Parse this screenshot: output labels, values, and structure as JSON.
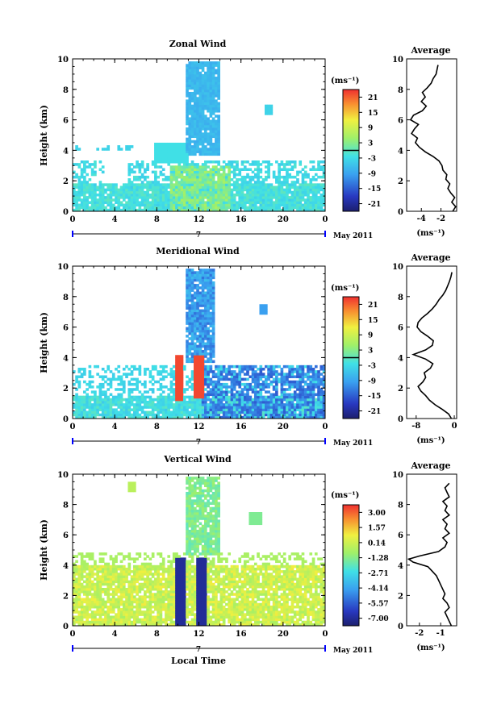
{
  "chart_data": [
    {
      "type": "heatmap",
      "title": "Zonal Wind",
      "ylabel": "Height (km)",
      "xlim": [
        0,
        24
      ],
      "ylim": [
        0,
        10
      ],
      "x_ticks": [
        "0",
        "4",
        "8",
        "12",
        "16",
        "20",
        "0"
      ],
      "y_ticks": [
        "0",
        "2",
        "4",
        "6",
        "8",
        "10"
      ],
      "date_marker": "7",
      "date_label": "May 2011",
      "colorbar": {
        "unit_label": "(ms⁻¹)",
        "ticks": [
          "21",
          "15",
          "9",
          "3",
          "-3",
          "-9",
          "-15",
          "-21"
        ],
        "range": [
          -24,
          24
        ],
        "zero_line": 0
      },
      "average": {
        "title": "Average",
        "xlabel": "(ms⁻¹)",
        "x_ticks": [
          "-4",
          "-2"
        ],
        "xlim": [
          -5.5,
          -0.4
        ],
        "profile": [
          [
            0,
            -0.8
          ],
          [
            0.3,
            -0.5
          ],
          [
            0.6,
            -0.9
          ],
          [
            0.9,
            -0.6
          ],
          [
            1.2,
            -1.0
          ],
          [
            1.5,
            -1.3
          ],
          [
            1.8,
            -1.1
          ],
          [
            2.1,
            -1.5
          ],
          [
            2.4,
            -1.4
          ],
          [
            2.7,
            -1.8
          ],
          [
            3.0,
            -1.9
          ],
          [
            3.3,
            -2.2
          ],
          [
            3.6,
            -2.8
          ],
          [
            3.9,
            -3.6
          ],
          [
            4.2,
            -4.2
          ],
          [
            4.5,
            -4.6
          ],
          [
            4.8,
            -4.4
          ],
          [
            5.1,
            -5.0
          ],
          [
            5.4,
            -4.7
          ],
          [
            5.7,
            -4.3
          ],
          [
            6.0,
            -5.1
          ],
          [
            6.3,
            -4.8
          ],
          [
            6.6,
            -3.9
          ],
          [
            6.9,
            -3.5
          ],
          [
            7.2,
            -4.0
          ],
          [
            7.5,
            -3.6
          ],
          [
            7.8,
            -3.9
          ],
          [
            8.1,
            -3.4
          ],
          [
            8.4,
            -3.0
          ],
          [
            8.7,
            -2.8
          ],
          [
            9.0,
            -2.5
          ],
          [
            9.3,
            -2.4
          ],
          [
            9.6,
            -2.3
          ]
        ]
      }
    },
    {
      "type": "heatmap",
      "title": "Meridional Wind",
      "ylabel": "Height (km)",
      "xlim": [
        0,
        24
      ],
      "ylim": [
        0,
        10
      ],
      "x_ticks": [
        "0",
        "4",
        "8",
        "12",
        "16",
        "20",
        "0"
      ],
      "y_ticks": [
        "0",
        "2",
        "4",
        "6",
        "8",
        "10"
      ],
      "date_marker": "7",
      "date_label": "May 2011",
      "colorbar": {
        "unit_label": "(ms⁻¹)",
        "ticks": [
          "21",
          "15",
          "9",
          "3",
          "-3",
          "-9",
          "-15",
          "-21"
        ],
        "range": [
          -24,
          24
        ],
        "zero_line": 0
      },
      "average": {
        "title": "Average",
        "xlabel": "(ms⁻¹)",
        "x_ticks": [
          "-8",
          "0"
        ],
        "xlim": [
          -10,
          0.5
        ],
        "profile": [
          [
            0,
            -0.6
          ],
          [
            0.3,
            -1.2
          ],
          [
            0.6,
            -2.5
          ],
          [
            0.9,
            -4.0
          ],
          [
            1.2,
            -5.2
          ],
          [
            1.5,
            -6.0
          ],
          [
            1.8,
            -7.0
          ],
          [
            2.1,
            -7.6
          ],
          [
            2.4,
            -6.6
          ],
          [
            2.7,
            -6.0
          ],
          [
            3.0,
            -6.3
          ],
          [
            3.3,
            -5.0
          ],
          [
            3.6,
            -4.5
          ],
          [
            3.9,
            -6.0
          ],
          [
            4.2,
            -8.6
          ],
          [
            4.5,
            -6.0
          ],
          [
            4.8,
            -4.6
          ],
          [
            5.1,
            -4.4
          ],
          [
            5.4,
            -5.6
          ],
          [
            5.7,
            -7.0
          ],
          [
            6.0,
            -7.8
          ],
          [
            6.3,
            -7.6
          ],
          [
            6.6,
            -6.8
          ],
          [
            6.9,
            -5.6
          ],
          [
            7.2,
            -4.6
          ],
          [
            7.5,
            -3.8
          ],
          [
            7.8,
            -3.2
          ],
          [
            8.1,
            -2.4
          ],
          [
            8.4,
            -1.8
          ],
          [
            8.7,
            -1.4
          ],
          [
            9.0,
            -1.0
          ],
          [
            9.3,
            -0.7
          ],
          [
            9.6,
            -0.5
          ]
        ]
      }
    },
    {
      "type": "heatmap",
      "title": "Vertical Wind",
      "ylabel": "Height (km)",
      "xlabel": "Local Time",
      "xlim": [
        0,
        24
      ],
      "ylim": [
        0,
        10
      ],
      "x_ticks": [
        "0",
        "4",
        "8",
        "12",
        "16",
        "20",
        "0"
      ],
      "y_ticks": [
        "0",
        "2",
        "4",
        "6",
        "8",
        "10"
      ],
      "date_marker": "7",
      "date_label": "May 2011",
      "colorbar": {
        "unit_label": "(ms⁻¹)",
        "ticks": [
          "3.00",
          "1.57",
          "0.14",
          "-1.28",
          "-2.71",
          "-4.14",
          "-5.57",
          "-7.00"
        ],
        "range": [
          -7.7,
          3.7
        ]
      },
      "average": {
        "title": "Average",
        "xlabel": "(ms⁻¹)",
        "x_ticks": [
          "-2",
          "-1"
        ],
        "xlim": [
          -2.6,
          -0.25
        ],
        "profile": [
          [
            0,
            -0.5
          ],
          [
            0.3,
            -0.6
          ],
          [
            0.6,
            -0.7
          ],
          [
            0.9,
            -0.8
          ],
          [
            1.2,
            -0.6
          ],
          [
            1.5,
            -0.7
          ],
          [
            1.8,
            -0.9
          ],
          [
            2.1,
            -0.8
          ],
          [
            2.4,
            -0.9
          ],
          [
            2.7,
            -1.0
          ],
          [
            3.0,
            -1.1
          ],
          [
            3.3,
            -1.2
          ],
          [
            3.6,
            -1.4
          ],
          [
            3.9,
            -1.6
          ],
          [
            4.2,
            -2.3
          ],
          [
            4.4,
            -2.5
          ],
          [
            4.6,
            -2.0
          ],
          [
            4.9,
            -1.1
          ],
          [
            5.2,
            -0.8
          ],
          [
            5.5,
            -0.7
          ],
          [
            5.8,
            -0.9
          ],
          [
            6.1,
            -0.6
          ],
          [
            6.4,
            -0.8
          ],
          [
            6.7,
            -0.7
          ],
          [
            7.0,
            -0.9
          ],
          [
            7.3,
            -0.6
          ],
          [
            7.6,
            -0.8
          ],
          [
            7.9,
            -0.7
          ],
          [
            8.2,
            -0.9
          ],
          [
            8.5,
            -0.6
          ],
          [
            8.8,
            -0.7
          ],
          [
            9.1,
            -0.8
          ],
          [
            9.4,
            -0.6
          ]
        ]
      }
    }
  ]
}
